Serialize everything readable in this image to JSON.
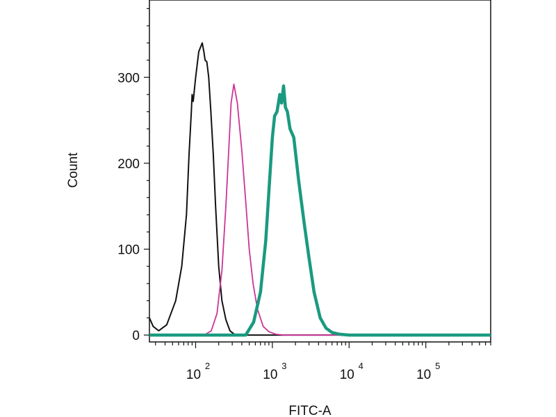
{
  "chart_data": {
    "type": "line",
    "title": "",
    "xlabel": "FITC-A",
    "ylabel": "Count",
    "x_scale": "log",
    "xlim": [
      25,
      700000
    ],
    "ylim": [
      -8,
      390
    ],
    "grid": false,
    "legend": "none",
    "y_ticks": [
      {
        "value": 0,
        "label": "0"
      },
      {
        "value": 100,
        "label": "100"
      },
      {
        "value": 200,
        "label": "200"
      },
      {
        "value": 300,
        "label": "300"
      }
    ],
    "x_ticks": [
      {
        "value": 100,
        "base": "10",
        "exp": "2"
      },
      {
        "value": 1000,
        "base": "10",
        "exp": "3"
      },
      {
        "value": 10000,
        "base": "10",
        "exp": "4"
      },
      {
        "value": 100000,
        "base": "10",
        "exp": "5"
      }
    ],
    "series": [
      {
        "color": "#111111",
        "x": [
          25,
          28,
          33,
          42,
          55,
          66,
          76,
          82,
          88,
          90,
          93,
          100,
          110,
          122,
          128,
          133,
          140,
          148,
          158,
          170,
          182,
          200,
          220,
          248,
          280,
          320,
          450,
          1000,
          10000,
          100000,
          700000
        ],
        "y": [
          20,
          10,
          5,
          12,
          40,
          80,
          140,
          210,
          260,
          280,
          272,
          300,
          330,
          340,
          330,
          320,
          318,
          300,
          260,
          210,
          150,
          80,
          40,
          18,
          5,
          1,
          0,
          0,
          0,
          0,
          0
        ]
      },
      {
        "color": "#cc3399",
        "x": [
          25,
          130,
          160,
          190,
          220,
          248,
          270,
          290,
          315,
          350,
          400,
          450,
          500,
          560,
          640,
          760,
          900,
          1100,
          1400,
          10000,
          700000
        ],
        "y": [
          0,
          0,
          5,
          25,
          75,
          150,
          215,
          270,
          292,
          270,
          215,
          155,
          100,
          60,
          30,
          10,
          4,
          1,
          0,
          0,
          0
        ]
      },
      {
        "color": "#1a9a80",
        "x": [
          25,
          450,
          570,
          700,
          820,
          920,
          1000,
          1070,
          1150,
          1250,
          1320,
          1400,
          1480,
          1570,
          1700,
          1900,
          2200,
          2600,
          3000,
          3500,
          4200,
          5000,
          6000,
          7500,
          10000,
          700000
        ],
        "y": [
          0,
          0,
          15,
          50,
          110,
          180,
          230,
          255,
          260,
          280,
          270,
          290,
          265,
          260,
          240,
          230,
          180,
          130,
          90,
          50,
          20,
          8,
          3,
          1,
          0,
          0
        ]
      }
    ]
  }
}
